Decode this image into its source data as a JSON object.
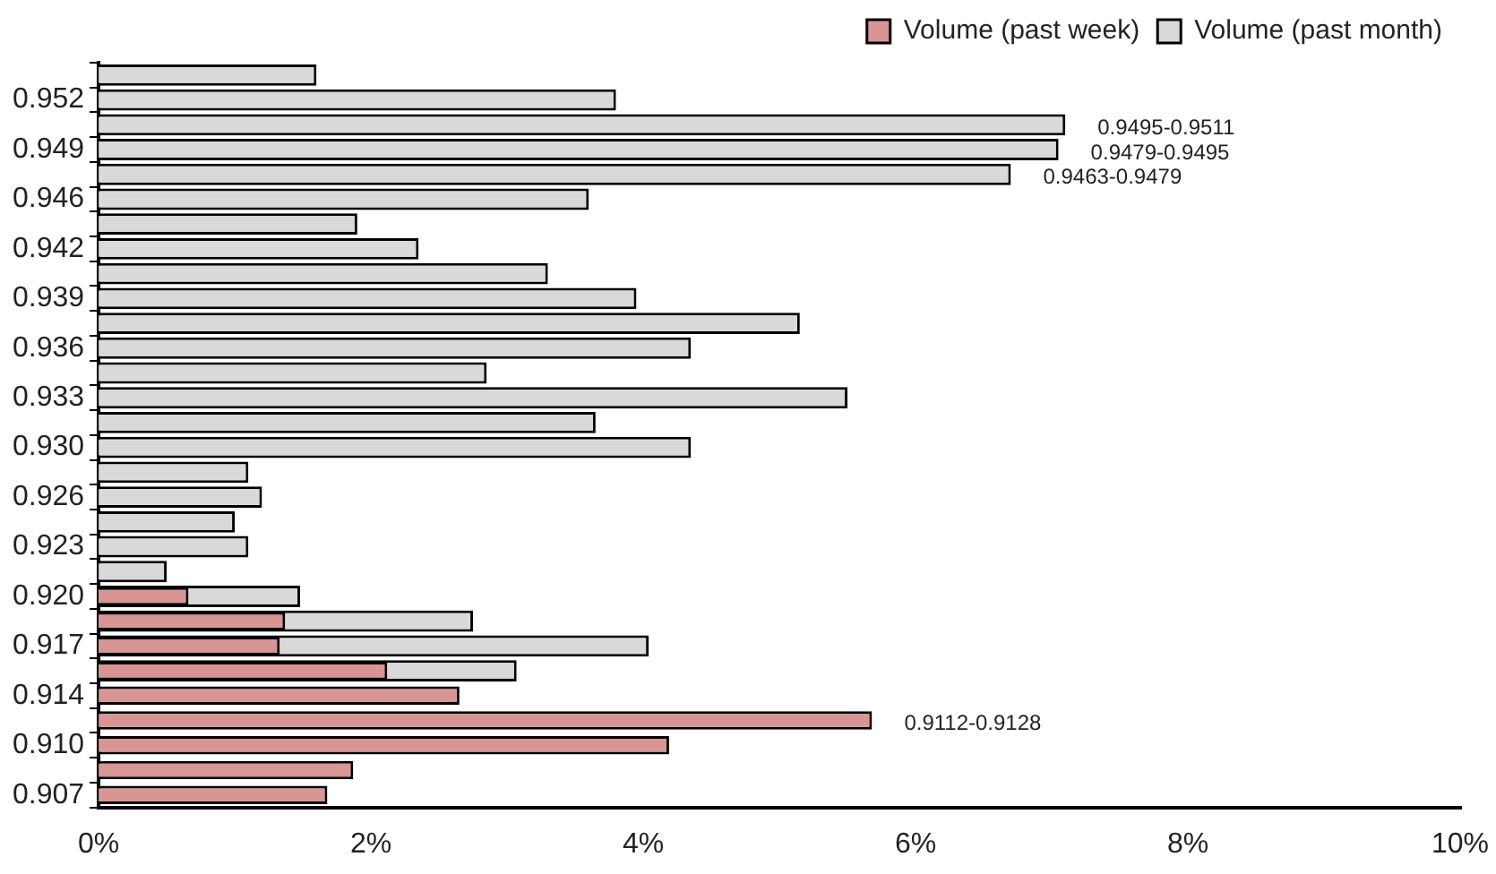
{
  "chart_data": {
    "type": "bar",
    "orientation": "horizontal",
    "stacked": false,
    "categories": [
      null,
      "0.952",
      null,
      "0.949",
      null,
      "0.946",
      null,
      "0.942",
      null,
      "0.939",
      null,
      "0.936",
      null,
      "0.933",
      null,
      "0.930",
      null,
      "0.926",
      null,
      "0.923",
      null,
      "0.920",
      null,
      "0.917",
      null,
      "0.914",
      null,
      "0.910",
      null,
      "0.907"
    ],
    "series": [
      {
        "name": "Volume (past week)",
        "color": "#d99594",
        "values": [
          null,
          null,
          null,
          null,
          null,
          null,
          null,
          null,
          null,
          null,
          null,
          null,
          null,
          null,
          null,
          null,
          null,
          null,
          null,
          null,
          null,
          0.66,
          1.37,
          1.33,
          2.12,
          2.65,
          5.68,
          4.19,
          1.87,
          1.68
        ]
      },
      {
        "name": "Volume (past month)",
        "color": "#d9d9d9",
        "values": [
          1.6,
          3.8,
          7.1,
          7.05,
          6.7,
          3.6,
          1.9,
          2.35,
          3.3,
          3.95,
          5.15,
          4.35,
          2.85,
          5.5,
          3.65,
          4.35,
          1.1,
          1.2,
          1.0,
          1.1,
          0.5,
          1.48,
          2.75,
          4.04,
          3.07,
          null,
          null,
          null,
          null,
          null
        ]
      }
    ],
    "xlim": [
      0,
      10
    ],
    "xticks": [
      {
        "value": 0,
        "label": "0%"
      },
      {
        "value": 2,
        "label": "2%"
      },
      {
        "value": 4,
        "label": "4%"
      },
      {
        "value": 6,
        "label": "6%"
      },
      {
        "value": 8,
        "label": "8%"
      },
      {
        "value": 10,
        "label": "10%"
      }
    ],
    "grid": false,
    "legend": "top right",
    "annotations": [
      {
        "text": "0.9495-0.9511",
        "x": 7.1
      },
      {
        "text": "0.9479-0.9495",
        "x": 7.05,
        "y": "0.949"
      },
      {
        "text": "0.9463-0.9479",
        "x": 6.7
      },
      {
        "text": "0.9112-0.9128",
        "x": 5.68
      }
    ]
  }
}
